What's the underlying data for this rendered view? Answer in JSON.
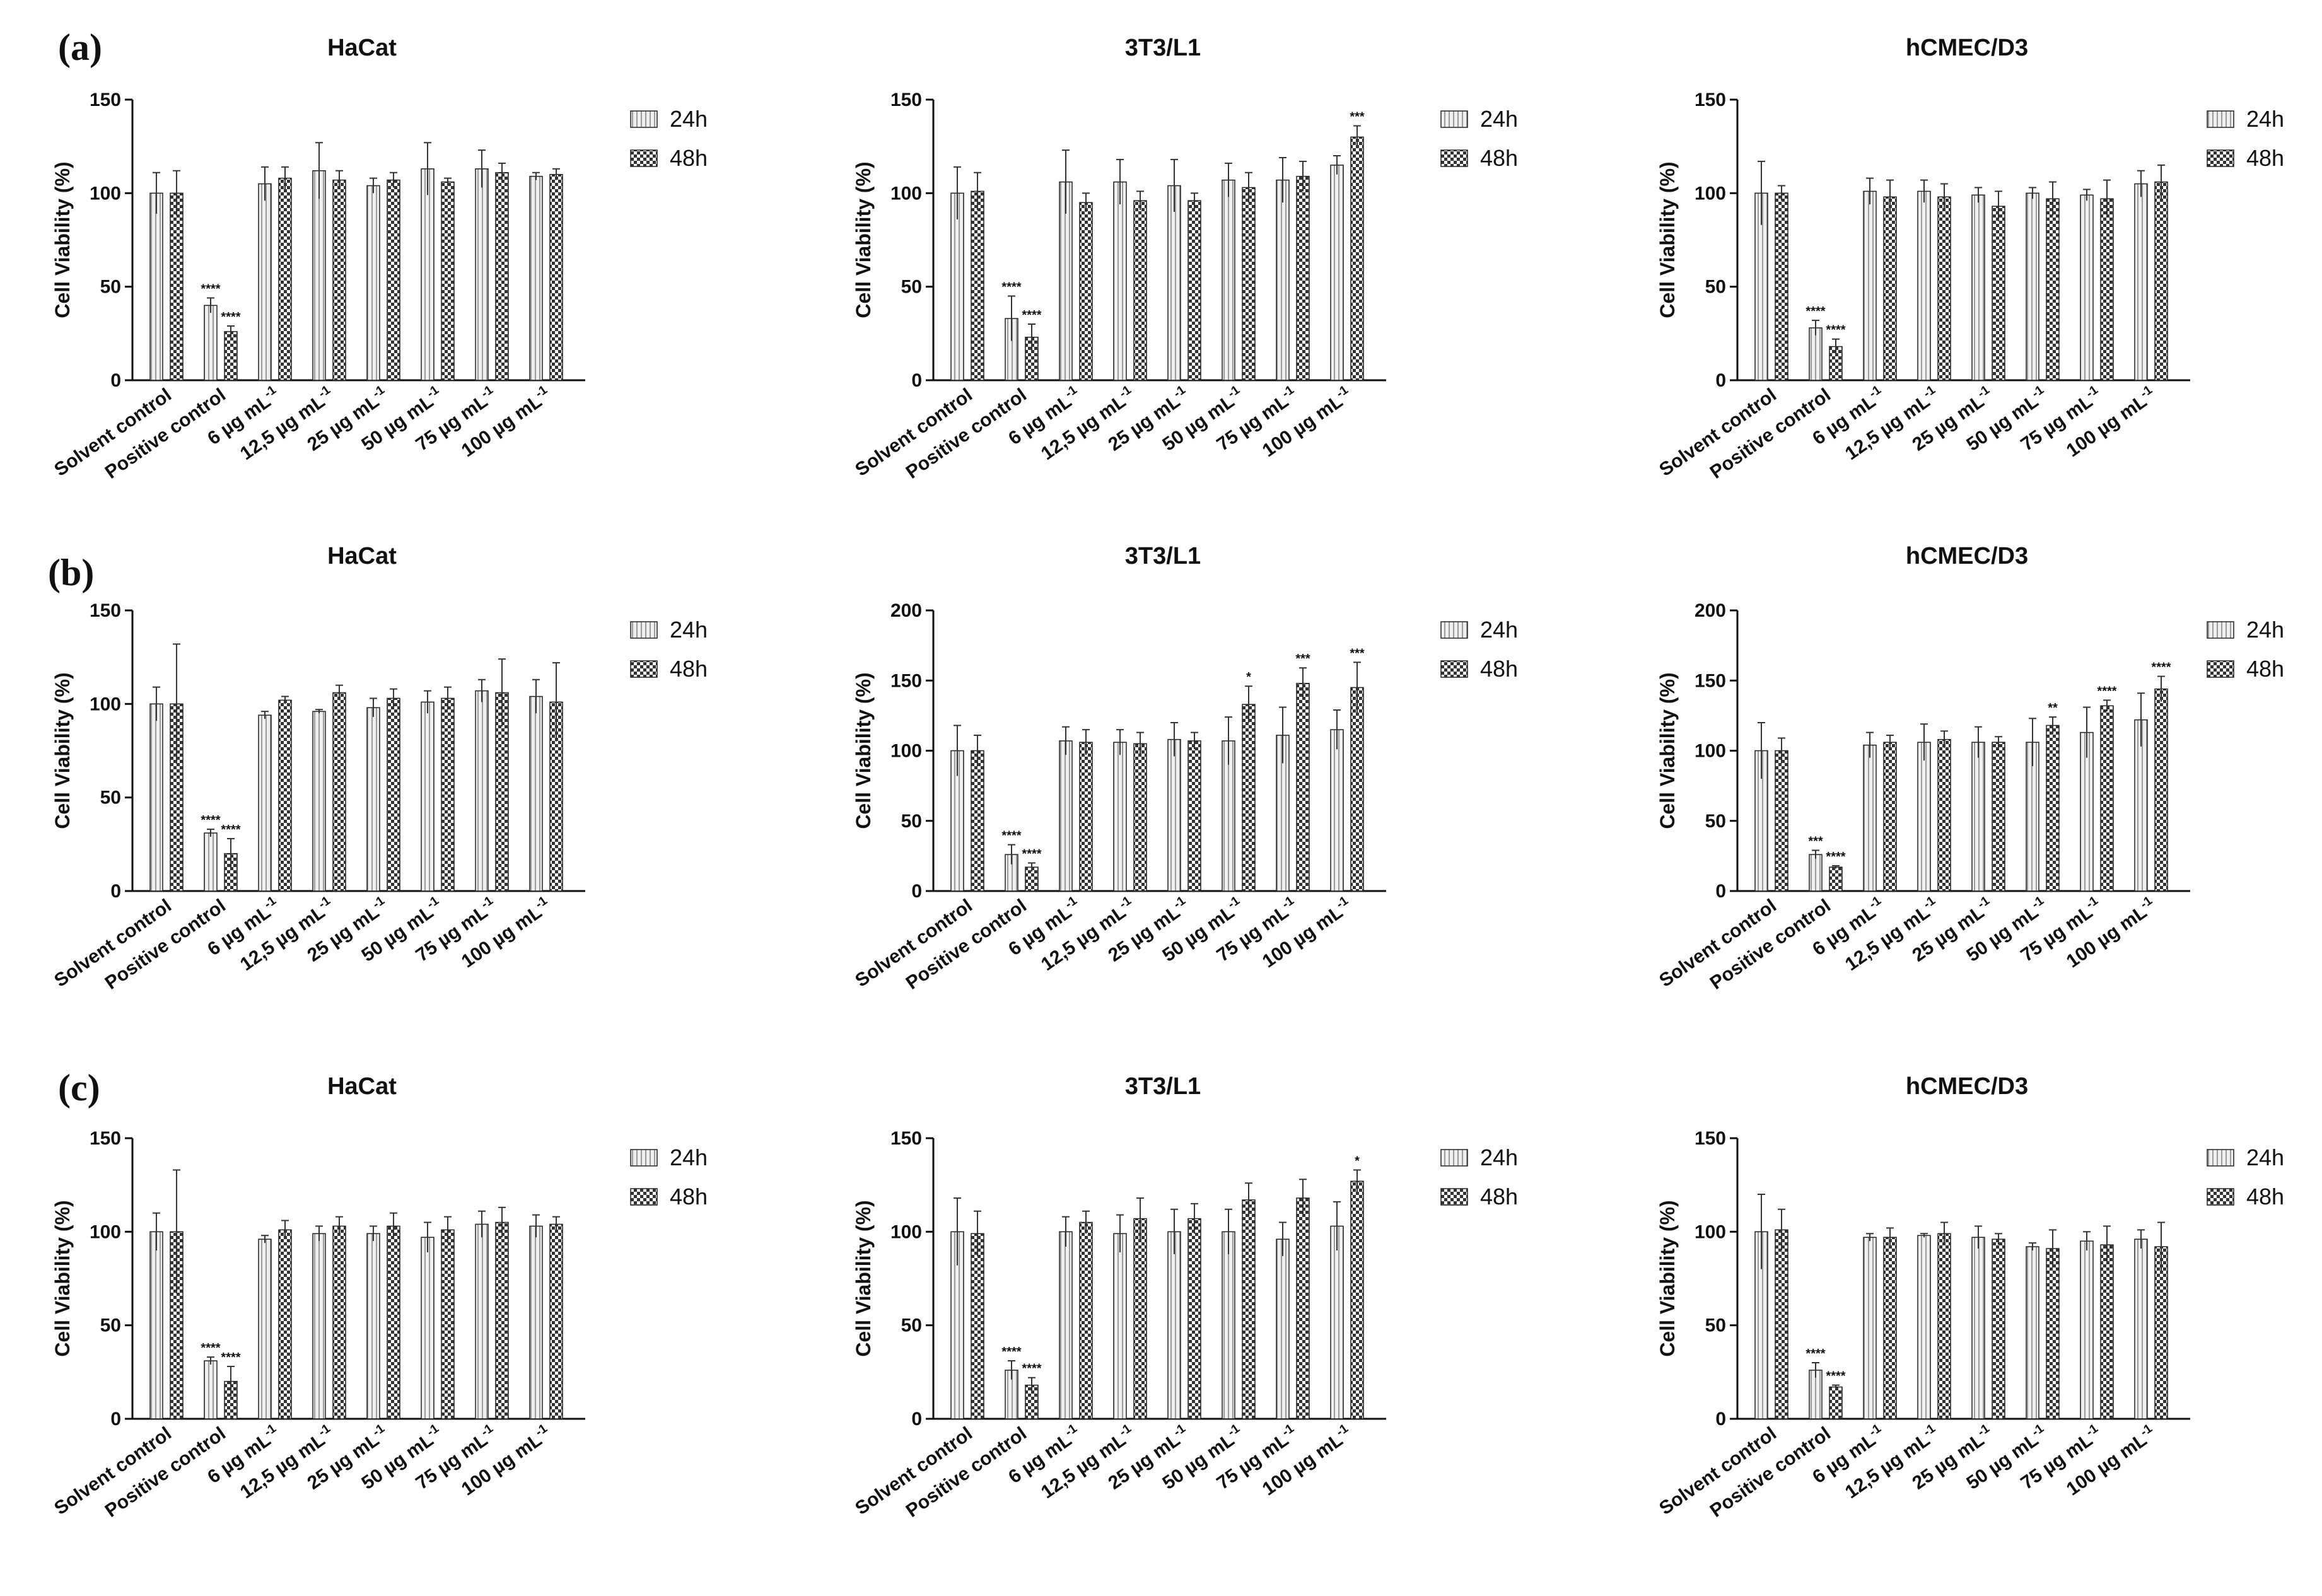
{
  "panel_labels": [
    "(a)",
    "(b)",
    "(c)"
  ],
  "legend": [
    "24h",
    "48h"
  ],
  "chart_data": [
    {
      "type": "bar",
      "panel": "(a)",
      "title": "HaCat",
      "ylabel": "Cell Viability (%)",
      "ylim": [
        0,
        150
      ],
      "yticks": [
        "0",
        "50",
        "100",
        "150"
      ],
      "categories": [
        "Solvent control",
        "Positive control",
        "6 µg mL-1",
        "12,5 µg mL-1",
        "25 µg mL-1",
        "50 µg mL-1",
        "75 µg mL-1",
        "100 µg mL-1"
      ],
      "series": [
        {
          "name": "24h",
          "values": [
            100,
            40,
            105,
            112,
            104,
            113,
            113,
            109
          ],
          "errors": [
            11,
            4,
            9,
            15,
            4,
            14,
            10,
            2
          ],
          "significance": [
            "",
            "****",
            "",
            "",
            "",
            "",
            "",
            ""
          ]
        },
        {
          "name": "48h",
          "values": [
            100,
            26,
            108,
            107,
            107,
            106,
            111,
            110
          ],
          "errors": [
            12,
            3,
            6,
            5,
            4,
            2,
            5,
            3
          ],
          "significance": [
            "",
            "****",
            "",
            "",
            "",
            "",
            "",
            ""
          ]
        }
      ]
    },
    {
      "type": "bar",
      "panel": "(a)",
      "title": "3T3/L1",
      "ylabel": "Cell Viability (%)",
      "ylim": [
        0,
        150
      ],
      "yticks": [
        "0",
        "50",
        "100",
        "150"
      ],
      "categories": [
        "Solvent control",
        "Positive control",
        "6 µg mL-1",
        "12,5 µg mL-1",
        "25 µg mL-1",
        "50 µg mL-1",
        "75 µg mL-1",
        "100 µg mL-1"
      ],
      "series": [
        {
          "name": "24h",
          "values": [
            100,
            33,
            106,
            106,
            104,
            107,
            107,
            115
          ],
          "errors": [
            14,
            12,
            17,
            12,
            14,
            9,
            12,
            5
          ],
          "significance": [
            "",
            "****",
            "",
            "",
            "",
            "",
            "",
            ""
          ]
        },
        {
          "name": "48h",
          "values": [
            101,
            23,
            95,
            96,
            96,
            103,
            109,
            130
          ],
          "errors": [
            10,
            7,
            5,
            5,
            4,
            8,
            8,
            6
          ],
          "significance": [
            "",
            "****",
            "",
            "",
            "",
            "",
            "",
            "***"
          ]
        }
      ]
    },
    {
      "type": "bar",
      "panel": "(a)",
      "title": "hCMEC/D3",
      "ylabel": "Cell Viability (%)",
      "ylim": [
        0,
        150
      ],
      "yticks": [
        "0",
        "50",
        "100",
        "150"
      ],
      "categories": [
        "Solvent control",
        "Positive control",
        "6 µg mL-1",
        "12,5 µg mL-1",
        "25 µg mL-1",
        "50 µg mL-1",
        "75 µg mL-1",
        "100 µg mL-1"
      ],
      "series": [
        {
          "name": "24h",
          "values": [
            100,
            28,
            101,
            101,
            99,
            100,
            99,
            105
          ],
          "errors": [
            17,
            4,
            7,
            6,
            4,
            3,
            3,
            7
          ],
          "significance": [
            "",
            "****",
            "",
            "",
            "",
            "",
            "",
            ""
          ]
        },
        {
          "name": "48h",
          "values": [
            100,
            18,
            98,
            98,
            93,
            97,
            97,
            106
          ],
          "errors": [
            4,
            4,
            9,
            7,
            8,
            9,
            10,
            9
          ],
          "significance": [
            "",
            "****",
            "",
            "",
            "",
            "",
            "",
            ""
          ]
        }
      ]
    },
    {
      "type": "bar",
      "panel": "(b)",
      "title": "HaCat",
      "ylabel": "Cell Viability (%)",
      "ylim": [
        0,
        150
      ],
      "yticks": [
        "0",
        "50",
        "100",
        "150"
      ],
      "categories": [
        "Solvent control",
        "Positive control",
        "6 µg mL-1",
        "12,5 µg mL-1",
        "25 µg mL-1",
        "50 µg mL-1",
        "75 µg mL-1",
        "100 µg mL-1"
      ],
      "series": [
        {
          "name": "24h",
          "values": [
            100,
            31,
            94,
            96,
            98,
            101,
            107,
            104
          ],
          "errors": [
            9,
            2,
            2,
            1,
            5,
            6,
            6,
            9
          ],
          "significance": [
            "",
            "****",
            "",
            "",
            "",
            "",
            "",
            ""
          ]
        },
        {
          "name": "48h",
          "values": [
            100,
            20,
            102,
            106,
            103,
            103,
            106,
            101
          ],
          "errors": [
            32,
            8,
            2,
            4,
            5,
            6,
            18,
            21
          ],
          "significance": [
            "",
            "****",
            "",
            "",
            "",
            "",
            "",
            ""
          ]
        }
      ]
    },
    {
      "type": "bar",
      "panel": "(b)",
      "title": "3T3/L1",
      "ylabel": "Cell Viability (%)",
      "ylim": [
        0,
        200
      ],
      "yticks": [
        "0",
        "50",
        "100",
        "150",
        "200"
      ],
      "categories": [
        "Solvent control",
        "Positive control",
        "6 µg mL-1",
        "12,5 µg mL-1",
        "25 µg mL-1",
        "50 µg mL-1",
        "75 µg mL-1",
        "100 µg mL-1"
      ],
      "series": [
        {
          "name": "24h",
          "values": [
            100,
            26,
            107,
            106,
            108,
            107,
            111,
            115
          ],
          "errors": [
            18,
            7,
            10,
            9,
            12,
            17,
            20,
            14
          ],
          "significance": [
            "",
            "****",
            "",
            "",
            "",
            "",
            "",
            ""
          ]
        },
        {
          "name": "48h",
          "values": [
            100,
            17,
            106,
            105,
            107,
            133,
            148,
            145
          ],
          "errors": [
            11,
            3,
            9,
            8,
            6,
            13,
            11,
            18
          ],
          "significance": [
            "",
            "****",
            "",
            "",
            "",
            "*",
            "***",
            "***"
          ]
        }
      ]
    },
    {
      "type": "bar",
      "panel": "(b)",
      "title": "hCMEC/D3",
      "ylabel": "Cell Viability (%)",
      "ylim": [
        0,
        200
      ],
      "yticks": [
        "0",
        "50",
        "100",
        "150",
        "200"
      ],
      "categories": [
        "Solvent control",
        "Positive control",
        "6 µg mL-1",
        "12,5 µg mL-1",
        "25 µg mL-1",
        "50 µg mL-1",
        "75 µg mL-1",
        "100 µg mL-1"
      ],
      "series": [
        {
          "name": "24h",
          "values": [
            100,
            26,
            104,
            106,
            106,
            106,
            113,
            122
          ],
          "errors": [
            20,
            3,
            9,
            13,
            11,
            17,
            18,
            19
          ],
          "significance": [
            "",
            "***",
            "",
            "",
            "",
            "",
            "",
            ""
          ]
        },
        {
          "name": "48h",
          "values": [
            100,
            17,
            106,
            108,
            106,
            118,
            132,
            144
          ],
          "errors": [
            9,
            1,
            5,
            6,
            4,
            6,
            4,
            9
          ],
          "significance": [
            "",
            "****",
            "",
            "",
            "",
            "**",
            "****",
            "****"
          ]
        }
      ]
    },
    {
      "type": "bar",
      "panel": "(c)",
      "title": "HaCat",
      "ylabel": "Cell Viability (%)",
      "ylim": [
        0,
        150
      ],
      "yticks": [
        "0",
        "50",
        "100",
        "150"
      ],
      "categories": [
        "Solvent control",
        "Positive control",
        "6 µg mL-1",
        "12,5 µg mL-1",
        "25 µg mL-1",
        "50 µg mL-1",
        "75 µg mL-1",
        "100 µg mL-1"
      ],
      "series": [
        {
          "name": "24h",
          "values": [
            100,
            31,
            96,
            99,
            99,
            97,
            104,
            103
          ],
          "errors": [
            10,
            2,
            2,
            4,
            4,
            8,
            7,
            6
          ],
          "significance": [
            "",
            "****",
            "",
            "",
            "",
            "",
            "",
            ""
          ]
        },
        {
          "name": "48h",
          "values": [
            100,
            20,
            101,
            103,
            103,
            101,
            105,
            104
          ],
          "errors": [
            33,
            8,
            5,
            5,
            7,
            7,
            8,
            4
          ],
          "significance": [
            "",
            "****",
            "",
            "",
            "",
            "",
            "",
            ""
          ]
        }
      ]
    },
    {
      "type": "bar",
      "panel": "(c)",
      "title": "3T3/L1",
      "ylabel": "Cell Viability (%)",
      "ylim": [
        0,
        150
      ],
      "yticks": [
        "0",
        "50",
        "100",
        "150"
      ],
      "categories": [
        "Solvent control",
        "Positive control",
        "6 µg mL-1",
        "12,5 µg mL-1",
        "25 µg mL-1",
        "50 µg mL-1",
        "75 µg mL-1",
        "100 µg mL-1"
      ],
      "series": [
        {
          "name": "24h",
          "values": [
            100,
            26,
            100,
            99,
            100,
            100,
            96,
            103
          ],
          "errors": [
            18,
            5,
            8,
            10,
            12,
            12,
            9,
            13
          ],
          "significance": [
            "",
            "****",
            "",
            "",
            "",
            "",
            "",
            ""
          ]
        },
        {
          "name": "48h",
          "values": [
            99,
            18,
            105,
            107,
            107,
            117,
            118,
            127
          ],
          "errors": [
            12,
            4,
            6,
            11,
            8,
            9,
            10,
            6
          ],
          "significance": [
            "",
            "****",
            "",
            "",
            "",
            "",
            "",
            "*"
          ]
        }
      ]
    },
    {
      "type": "bar",
      "panel": "(c)",
      "title": "hCMEC/D3",
      "ylabel": "Cell Viability (%)",
      "ylim": [
        0,
        150
      ],
      "yticks": [
        "0",
        "50",
        "100",
        "150"
      ],
      "categories": [
        "Solvent control",
        "Positive control",
        "6 µg mL-1",
        "12,5 µg mL-1",
        "25 µg mL-1",
        "50 µg mL-1",
        "75 µg mL-1",
        "100 µg mL-1"
      ],
      "series": [
        {
          "name": "24h",
          "values": [
            100,
            26,
            97,
            98,
            97,
            92,
            95,
            96
          ],
          "errors": [
            20,
            4,
            2,
            1,
            6,
            2,
            5,
            5
          ],
          "significance": [
            "",
            "****",
            "",
            "",
            "",
            "",
            "",
            ""
          ]
        },
        {
          "name": "48h",
          "values": [
            101,
            17,
            97,
            99,
            96,
            91,
            93,
            92
          ],
          "errors": [
            11,
            1,
            5,
            6,
            3,
            10,
            10,
            13
          ],
          "significance": [
            "",
            "****",
            "",
            "",
            "",
            "",
            "",
            ""
          ]
        }
      ]
    }
  ]
}
